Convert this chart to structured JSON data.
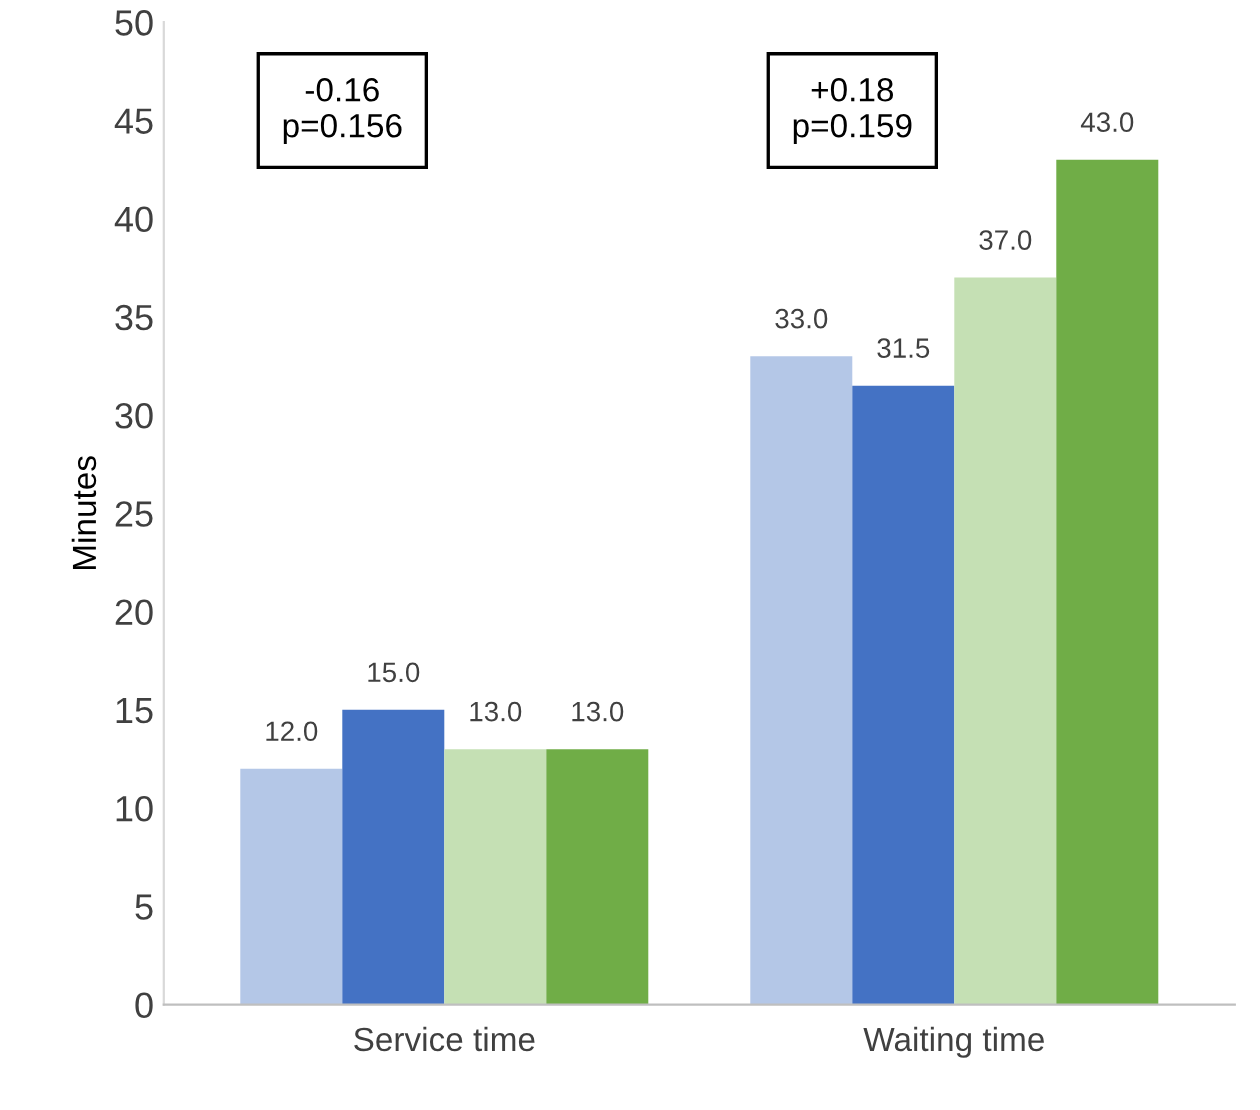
{
  "chart_data": {
    "type": "bar",
    "ylabel": "Minutes",
    "categories": [
      "Service time",
      "Waiting time"
    ],
    "series": [
      {
        "color": "#b4c7e7",
        "values": [
          12.0,
          33.0
        ],
        "value_labels": [
          "12.0",
          "33.0"
        ]
      },
      {
        "color": "#4472c4",
        "values": [
          15.0,
          31.5
        ],
        "value_labels": [
          "15.0",
          "31.5"
        ]
      },
      {
        "color": "#c5e0b4",
        "values": [
          13.0,
          37.0
        ],
        "value_labels": [
          "13.0",
          "37.0"
        ]
      },
      {
        "color": "#70ad47",
        "values": [
          13.0,
          43.0
        ],
        "value_labels": [
          "13.0",
          "43.0"
        ]
      }
    ],
    "ylim": [
      0,
      50
    ],
    "yticks": [
      0,
      5,
      10,
      15,
      20,
      25,
      30,
      35,
      40,
      45,
      50
    ],
    "grid": false,
    "legend": false,
    "annotations": [
      "-0.16\np=0.156",
      "+0.18\np=0.159"
    ]
  }
}
